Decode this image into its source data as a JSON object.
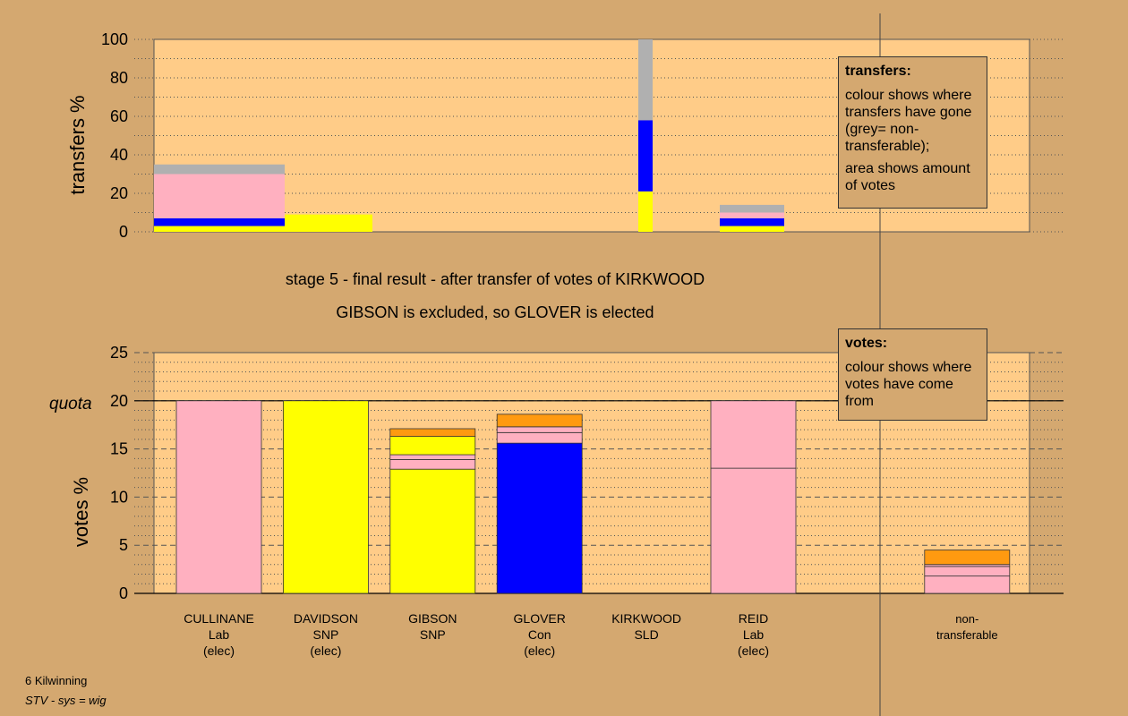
{
  "colors": {
    "background": "#D4A870",
    "plot": "#FFCC88",
    "Lab": "#FFB0C0",
    "SNP": "#FFFF00",
    "Con": "#0000FF",
    "SLD": "#FF9A10",
    "nontransferable": "#B0B0B0"
  },
  "stage_title": "stage 5 - final result - after transfer of votes of KIRKWOOD",
  "stage_subtitle": "GIBSON is excluded, so GLOVER is elected",
  "quota_label": "quota",
  "legend_transfers": {
    "title": "transfers:",
    "text1": "colour shows where transfers have gone (grey= non-transferable);",
    "text2": "area shows amount of votes"
  },
  "legend_votes": {
    "title": "votes:",
    "text": "colour shows where votes have come from"
  },
  "footer": {
    "area": "6 Kilwinning",
    "system": "STV - sys = wig"
  },
  "chart_data": [
    {
      "type": "bar",
      "ylabel": "transfers %",
      "ylim": [
        0,
        100
      ],
      "yticks": [
        0,
        20,
        40,
        60,
        80,
        100
      ],
      "grid": true,
      "note": "stacked transfer bars; width proportional to votes transferred",
      "bars": [
        {
          "from_votes_of": "CULLINANE",
          "segments": [
            {
              "party": "SNP",
              "value": 3
            },
            {
              "party": "Con",
              "value": 4
            },
            {
              "party": "Lab",
              "value": 23
            },
            {
              "party": "nontransferable",
              "value": 5
            }
          ]
        },
        {
          "from_votes_of": "DAVIDSON",
          "segments": [
            {
              "party": "SNP",
              "value": 9
            }
          ]
        },
        {
          "from_votes_of": "KIRKWOOD",
          "segments": [
            {
              "party": "SNP",
              "value": 21
            },
            {
              "party": "Con",
              "value": 37
            },
            {
              "party": "nontransferable",
              "value": 42
            }
          ]
        },
        {
          "from_votes_of": "REID",
          "segments": [
            {
              "party": "SNP",
              "value": 3
            },
            {
              "party": "Con",
              "value": 4
            },
            {
              "party": "Lab",
              "value": 3
            },
            {
              "party": "nontransferable",
              "value": 4
            }
          ]
        }
      ]
    },
    {
      "type": "bar",
      "ylabel": "votes %",
      "ylim": [
        0,
        25
      ],
      "yticks": [
        0,
        5,
        10,
        15,
        20,
        25
      ],
      "quota": 20,
      "grid": true,
      "categories": [
        {
          "name": "CULLINANE",
          "party": "Lab",
          "status": "(elec)"
        },
        {
          "name": "DAVIDSON",
          "party": "SNP",
          "status": "(elec)"
        },
        {
          "name": "GIBSON",
          "party": "SNP",
          "status": ""
        },
        {
          "name": "GLOVER",
          "party": "Con",
          "status": "(elec)"
        },
        {
          "name": "KIRKWOOD",
          "party": "SLD",
          "status": ""
        },
        {
          "name": "REID",
          "party": "Lab",
          "status": "(elec)"
        },
        {
          "name": "non-",
          "party": "transferable",
          "status": ""
        }
      ],
      "stacks": [
        [
          {
            "party": "Lab",
            "value": 20
          }
        ],
        [
          {
            "party": "SNP",
            "value": 20
          }
        ],
        [
          {
            "party": "SNP",
            "value": 12.9
          },
          {
            "party": "Lab",
            "value": 1.0
          },
          {
            "party": "Lab",
            "value": 0.5
          },
          {
            "party": "SNP",
            "value": 1.9
          },
          {
            "party": "SLD",
            "value": 0.8
          }
        ],
        [
          {
            "party": "Con",
            "value": 15.6
          },
          {
            "party": "Lab",
            "value": 1.1
          },
          {
            "party": "Lab",
            "value": 0.6
          },
          {
            "party": "SLD",
            "value": 1.3
          }
        ],
        [
          {
            "party": "SLD",
            "value": 0
          }
        ],
        [
          {
            "party": "Lab",
            "value": 13.0
          },
          {
            "party": "Lab",
            "value": 7.0
          }
        ],
        [
          {
            "party": "Lab",
            "value": 1.8
          },
          {
            "party": "Lab",
            "value": 1.0
          },
          {
            "party": "Lab",
            "value": 0.2
          },
          {
            "party": "SLD",
            "value": 1.5
          }
        ]
      ]
    }
  ]
}
